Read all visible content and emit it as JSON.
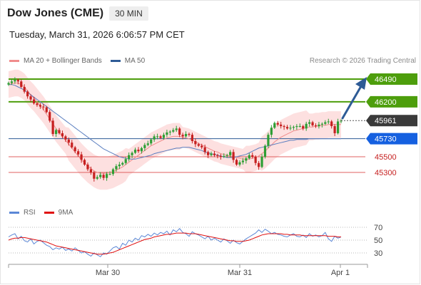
{
  "header": {
    "title": "Dow Jones (CME)",
    "timeframe": "30 MIN",
    "datetime": "Tuesday, March 31, 2026 6:06:57 PM CET"
  },
  "legend": {
    "items": [
      {
        "label": "MA 20 + Bollinger Bands",
        "color": "#f08c8c"
      },
      {
        "label": "MA 50",
        "color": "#2e5b96"
      }
    ],
    "credit": "Research © 2026 Trading Central"
  },
  "rsi_legend": {
    "items": [
      {
        "label": "RSI",
        "color": "#5b87d6"
      },
      {
        "label": "9MA",
        "color": "#e01010"
      }
    ]
  },
  "colors": {
    "bull": "#2e9e34",
    "bear": "#c62020",
    "resistance": "#4d9e0c",
    "support": "#e06060",
    "pivot": "#2e5b96",
    "last": "#3a3a3a",
    "band": "#fde0e0",
    "ma20": "#f08c8c",
    "ma50": "#5b7fc0",
    "arrow": "#2e5b96"
  },
  "chart_data": [
    {
      "type": "candlestick",
      "title": "Dow Jones (CME)",
      "interval": "30 MIN",
      "xlabel": "",
      "ylabel": "",
      "x_ticks": [
        "Mar 30",
        "Mar 31",
        "Apr 1"
      ],
      "ylim": [
        45140,
        46530
      ],
      "last_price": 45961,
      "levels": [
        {
          "value": 46490,
          "kind": "resistance"
        },
        {
          "value": 46200,
          "kind": "resistance"
        },
        {
          "value": 45961,
          "kind": "last"
        },
        {
          "value": 45730,
          "kind": "pivot"
        },
        {
          "value": 45500,
          "kind": "support"
        },
        {
          "value": 45300,
          "kind": "support"
        }
      ],
      "forecast_target": 46490,
      "close": [
        46440,
        46460,
        46480,
        46460,
        46390,
        46330,
        46270,
        46230,
        46180,
        46160,
        46140,
        46130,
        46070,
        45960,
        45790,
        45840,
        45800,
        45760,
        45720,
        45680,
        45620,
        45570,
        45530,
        45460,
        45400,
        45340,
        45300,
        45220,
        45240,
        45270,
        45230,
        45280,
        45280,
        45340,
        45380,
        45400,
        45420,
        45470,
        45520,
        45550,
        45590,
        45570,
        45610,
        45650,
        45670,
        45720,
        45760,
        45760,
        45740,
        45780,
        45810,
        45820,
        45840,
        45860,
        45780,
        45760,
        45790,
        45780,
        45700,
        45660,
        45640,
        45620,
        45560,
        45520,
        45540,
        45520,
        45510,
        45500,
        45510,
        45520,
        45560,
        45460,
        45400,
        45430,
        45450,
        45480,
        45520,
        45500,
        45420,
        45370,
        45500,
        45640,
        45780,
        45870,
        45930,
        45910,
        45890,
        45880,
        45860,
        45870,
        45880,
        45890,
        45890,
        45860,
        45920,
        45940,
        45900,
        45890,
        45910,
        45920,
        45940,
        45950,
        45890,
        45800,
        45950,
        45961
      ],
      "ma20": [
        46420,
        46430,
        46440,
        46440,
        46420,
        46390,
        46340,
        46290,
        46250,
        46200,
        46150,
        46100,
        46040,
        45980,
        45920,
        45860,
        45810,
        45760,
        45710,
        45660,
        45610,
        45560,
        45510,
        45460,
        45420,
        45380,
        45350,
        45320,
        45300,
        45290,
        45290,
        45290,
        45300,
        45310,
        45330,
        45350,
        45370,
        45400,
        45430,
        45460,
        45490,
        45520,
        45550,
        45580,
        45610,
        45640,
        45660,
        45680,
        45700,
        45720,
        45740,
        45750,
        45760,
        45760,
        45760,
        45750,
        45740,
        45730,
        45710,
        45690,
        45670,
        45650,
        45630,
        45610,
        45590,
        45570,
        45560,
        45540,
        45530,
        45520,
        45510,
        45500,
        45490,
        45480,
        45470,
        45470,
        45470,
        45480,
        45490,
        45510,
        45540,
        45570,
        45610,
        45650,
        45690,
        45720,
        45750,
        45770,
        45790,
        45810,
        45830,
        45840,
        45850,
        45860,
        45870,
        45880,
        45880,
        45890,
        45890,
        45900,
        45900,
        45910,
        45910,
        45910,
        45910,
        45910
      ],
      "ma50": [
        46420,
        46420,
        46410,
        46390,
        46370,
        46350,
        46320,
        46290,
        46260,
        46230,
        46200,
        46170,
        46140,
        46110,
        46080,
        46050,
        46020,
        45990,
        45960,
        45930,
        45900,
        45870,
        45840,
        45810,
        45780,
        45750,
        45720,
        45690,
        45660,
        45630,
        45600,
        45580,
        45560,
        45540,
        45520,
        45500,
        45490,
        45480,
        45470,
        45470,
        45470,
        45480,
        45490,
        45500,
        45510,
        45520,
        45540,
        45550,
        45560,
        45570,
        45580,
        45590,
        45600,
        45610,
        45610,
        45620,
        45620,
        45620,
        45610,
        45600,
        45590,
        45580,
        45560,
        45550,
        45540,
        45530,
        45520,
        45510,
        45500,
        45490,
        45490,
        45490,
        45500,
        45510,
        45520,
        45530,
        45550,
        45570,
        45590,
        45610,
        45620,
        45630,
        45640,
        45650,
        45660,
        45670,
        45680,
        45690,
        45700,
        45710,
        45710,
        45720,
        45720,
        45720,
        45720,
        45730,
        45730,
        45730,
        45730,
        45730,
        45730,
        45730,
        45730,
        45730,
        45730,
        45730
      ]
    },
    {
      "type": "line",
      "title": "",
      "xlabel": "",
      "ylabel": "",
      "series_names": [
        "RSI",
        "9MA"
      ],
      "ylim": [
        20,
        80
      ],
      "y_ticks": [
        70,
        50,
        30
      ],
      "rsi": [
        55,
        58,
        60,
        52,
        56,
        49,
        47,
        52,
        44,
        48,
        50,
        46,
        42,
        40,
        35,
        38,
        36,
        39,
        34,
        36,
        33,
        38,
        34,
        30,
        32,
        28,
        25,
        30,
        27,
        24,
        30,
        28,
        33,
        38,
        40,
        36,
        45,
        42,
        50,
        47,
        53,
        50,
        57,
        55,
        59,
        56,
        61,
        58,
        62,
        60,
        64,
        58,
        66,
        63,
        68,
        62,
        60,
        56,
        63,
        60,
        58,
        55,
        52,
        56,
        50,
        53,
        50,
        47,
        52,
        49,
        45,
        50,
        46,
        44,
        48,
        52,
        55,
        58,
        61,
        66,
        62,
        67,
        64,
        60,
        62,
        59,
        58,
        56,
        55,
        58,
        60,
        56,
        55,
        58,
        54,
        60,
        56,
        58,
        55,
        57,
        62,
        52,
        48,
        56,
        53,
        55
      ],
      "ma9": [
        50,
        52,
        53,
        53,
        54,
        54,
        53,
        52,
        51,
        50,
        49,
        48,
        47,
        45,
        43,
        41,
        40,
        39,
        38,
        37,
        36,
        35,
        34,
        33,
        32,
        31,
        30,
        29,
        28,
        28,
        28,
        29,
        30,
        31,
        33,
        35,
        37,
        39,
        41,
        43,
        45,
        47,
        49,
        51,
        52,
        53,
        55,
        56,
        57,
        58,
        59,
        59,
        60,
        61,
        61,
        61,
        61,
        60,
        60,
        60,
        59,
        58,
        57,
        56,
        55,
        54,
        53,
        52,
        51,
        50,
        49,
        49,
        48,
        48,
        48,
        49,
        50,
        52,
        54,
        56,
        58,
        59,
        60,
        60,
        60,
        60,
        60,
        59,
        59,
        58,
        58,
        58,
        58,
        57,
        57,
        57,
        57,
        57,
        57,
        57,
        57,
        56,
        56,
        56,
        55,
        55
      ]
    }
  ]
}
